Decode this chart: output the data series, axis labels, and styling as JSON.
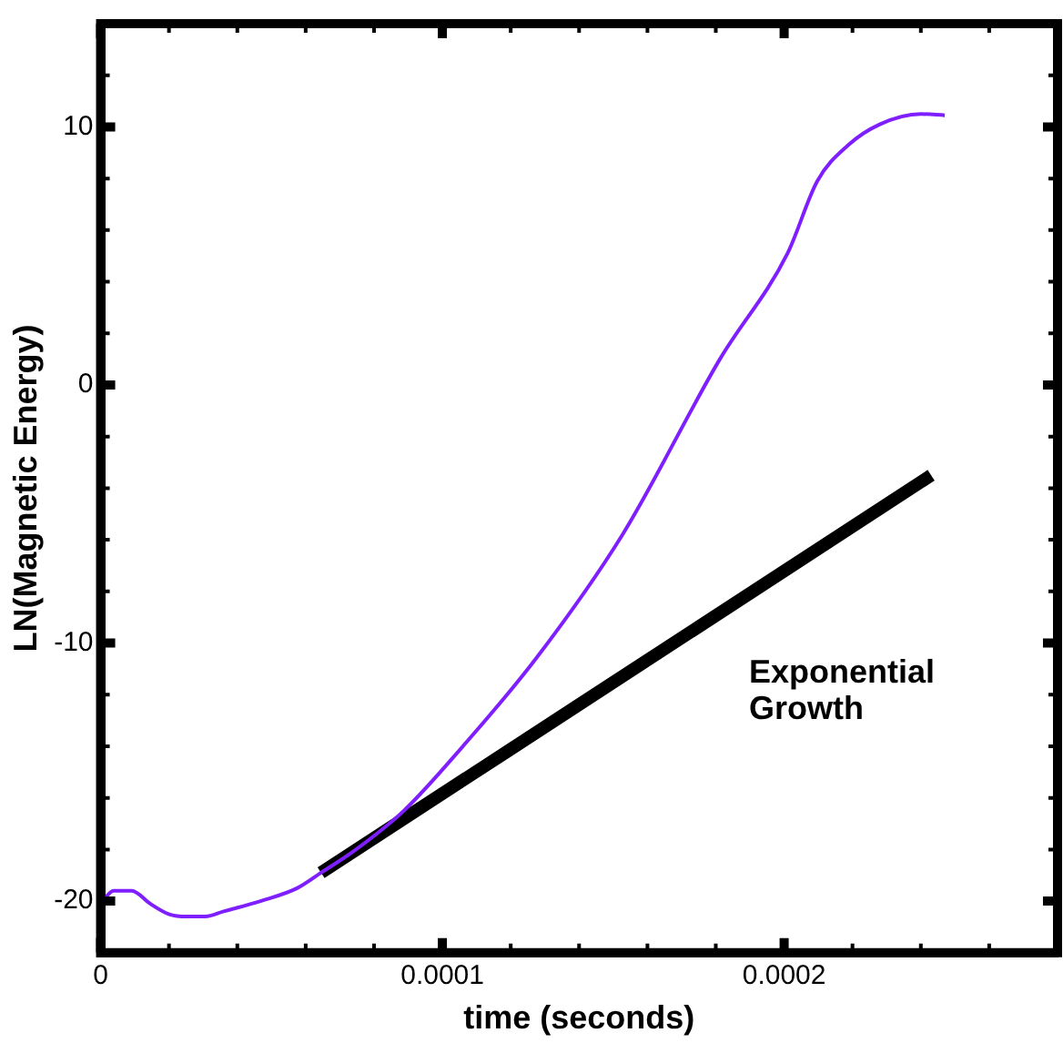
{
  "chart_data": {
    "type": "line",
    "xlabel": "time (seconds)",
    "ylabel": "LN(Magnetic Energy)",
    "xlim": [
      0,
      0.00028
    ],
    "ylim": [
      -22,
      14
    ],
    "xticks": [
      0,
      {
        "value": 2e-05,
        "label": null
      },
      {
        "value": 4e-05,
        "label": null
      },
      {
        "value": 6e-05,
        "label": null
      },
      {
        "value": 8e-05,
        "label": null
      },
      0.0001,
      {
        "value": 0.00012,
        "label": null
      },
      {
        "value": 0.00014,
        "label": null
      },
      {
        "value": 0.00016,
        "label": null
      },
      {
        "value": 0.00018,
        "label": null
      },
      0.0002,
      {
        "value": 0.00022,
        "label": null
      },
      {
        "value": 0.00024,
        "label": null
      },
      {
        "value": 0.00026,
        "label": null
      }
    ],
    "yticks": [
      {
        "value": -18,
        "label": null
      },
      {
        "value": -16,
        "label": null
      },
      {
        "value": -14,
        "label": null
      },
      {
        "value": -12,
        "label": null
      },
      {
        "value": -8,
        "label": null
      },
      {
        "value": -6,
        "label": null
      },
      {
        "value": -4,
        "label": null
      },
      {
        "value": -2,
        "label": null
      },
      {
        "value": 2,
        "label": null
      },
      {
        "value": 4,
        "label": null
      },
      {
        "value": 6,
        "label": null
      },
      {
        "value": 8,
        "label": null
      },
      {
        "value": 12,
        "label": null
      },
      -20,
      -10,
      0,
      10
    ],
    "grid": false,
    "legend": false,
    "marker": "none",
    "line_style": "solid",
    "series": [
      {
        "color": "#7f1fff",
        "x": [
          0,
          3.8e-06,
          9.1e-06,
          1.45e-05,
          1.99e-05,
          2.53e-05,
          3.06e-05,
          3.6e-05,
          4.68e-05,
          5.75e-05,
          6.45e-05,
          7.37e-05,
          8.87e-05,
          0.000106,
          0.0001274,
          0.0001527,
          0.0001812,
          0.000201,
          0.0002097,
          0.0002188,
          0.000228,
          0.00024,
          0.000247
        ],
        "values": [
          -20.1,
          -19.6,
          -19.6,
          -20.1,
          -20.5,
          -20.6,
          -20.6,
          -20.4,
          -20.0,
          -19.5,
          -18.9,
          -18.1,
          -16.5,
          -14.0,
          -10.6,
          -5.8,
          1.0,
          5.1,
          7.9,
          9.3,
          10.1,
          10.5,
          10.45
        ]
      },
      {
        "name": "Exponential\nGrowth",
        "color": "#000000",
        "x": [
          6.45e-05,
          0.000243
        ],
        "values": [
          -18.9,
          -3.5
        ]
      }
    ]
  }
}
